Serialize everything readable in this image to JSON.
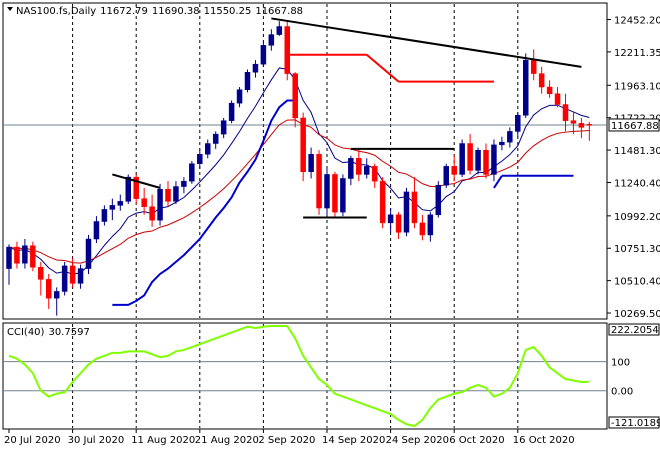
{
  "chart_data": [
    {
      "type": "candlestick",
      "symbol": "NAS100.fs",
      "timeframe": "Daily",
      "ohlc_header": [
        "11672.79",
        "11690.38",
        "11550.25",
        "11667.88"
      ],
      "current_price": 11667.88,
      "current_price_label": "11667.88",
      "y_tick_labels": [
        "12452.20",
        "12211.35",
        "11963.10",
        "11722.20",
        "11481.30",
        "11240.40",
        "10992.20",
        "10751.30",
        "10510.40",
        "10269.50"
      ],
      "y_tick_values": [
        12452.2,
        12211.35,
        11963.1,
        11722.2,
        11481.3,
        11240.4,
        10992.2,
        10751.3,
        10510.4,
        10269.5
      ],
      "x_tick_labels": [
        "20 Jul 2020",
        "30 Jul 2020",
        "11 Aug 2020",
        "21 Aug 2020",
        "2 Sep 2020",
        "14 Sep 2020",
        "24 Sep 2020",
        "6 Oct 2020",
        "16 Oct 2020"
      ],
      "x_tick_index": [
        0,
        8,
        16,
        24,
        32,
        40,
        48,
        56,
        64
      ],
      "ylim": [
        10240,
        12560
      ],
      "bull_color": "#00008b",
      "bear_color": "#ff0000",
      "candles": [
        [
          10600,
          10780,
          10480,
          10760
        ],
        [
          10760,
          10800,
          10600,
          10640
        ],
        [
          10640,
          10820,
          10600,
          10770
        ],
        [
          10770,
          10800,
          10580,
          10610
        ],
        [
          10610,
          10650,
          10400,
          10520
        ],
        [
          10520,
          10560,
          10300,
          10380
        ],
        [
          10380,
          10460,
          10250,
          10430
        ],
        [
          10430,
          10650,
          10400,
          10620
        ],
        [
          10620,
          10680,
          10460,
          10490
        ],
        [
          10490,
          10630,
          10450,
          10600
        ],
        [
          10600,
          10850,
          10560,
          10820
        ],
        [
          10820,
          10990,
          10790,
          10950
        ],
        [
          10950,
          11070,
          10920,
          11040
        ],
        [
          11040,
          11120,
          10960,
          11070
        ],
        [
          11070,
          11150,
          11030,
          11100
        ],
        [
          11100,
          11300,
          11080,
          11280
        ],
        [
          11280,
          11300,
          11080,
          11120
        ],
        [
          11120,
          11200,
          11000,
          11060
        ],
        [
          11060,
          11150,
          10910,
          10960
        ],
        [
          10960,
          11230,
          10920,
          11190
        ],
        [
          11190,
          11250,
          11060,
          11100
        ],
        [
          11100,
          11250,
          11080,
          11210
        ],
        [
          11210,
          11280,
          11160,
          11250
        ],
        [
          11250,
          11400,
          11230,
          11380
        ],
        [
          11380,
          11480,
          11340,
          11450
        ],
        [
          11450,
          11560,
          11420,
          11530
        ],
        [
          11530,
          11620,
          11490,
          11600
        ],
        [
          11600,
          11720,
          11570,
          11700
        ],
        [
          11700,
          11850,
          11680,
          11830
        ],
        [
          11830,
          11950,
          11800,
          11930
        ],
        [
          11930,
          12080,
          11910,
          12060
        ],
        [
          12060,
          12150,
          12020,
          12120
        ],
        [
          12120,
          12280,
          12100,
          12260
        ],
        [
          12260,
          12380,
          12220,
          12340
        ],
        [
          12340,
          12440,
          12330,
          12400
        ],
        [
          12400,
          12440,
          12000,
          12050
        ],
        [
          12050,
          12060,
          11650,
          11720
        ],
        [
          11720,
          11760,
          11250,
          11320
        ],
        [
          11320,
          11500,
          11270,
          11450
        ],
        [
          11450,
          11480,
          11000,
          11050
        ],
        [
          11050,
          11350,
          10990,
          11300
        ],
        [
          11300,
          11320,
          10980,
          11020
        ],
        [
          11020,
          11300,
          10990,
          11270
        ],
        [
          11270,
          11440,
          11220,
          11420
        ],
        [
          11420,
          11490,
          11250,
          11300
        ],
        [
          11300,
          11420,
          11270,
          11360
        ],
        [
          11360,
          11380,
          11200,
          11250
        ],
        [
          11250,
          11280,
          10900,
          10940
        ],
        [
          10940,
          11050,
          10870,
          11000
        ],
        [
          11000,
          11020,
          10820,
          10870
        ],
        [
          10870,
          11200,
          10840,
          11170
        ],
        [
          11170,
          11280,
          10900,
          10940
        ],
        [
          10940,
          11000,
          10810,
          10850
        ],
        [
          10850,
          11020,
          10800,
          11000
        ],
        [
          11000,
          11250,
          10980,
          11220
        ],
        [
          11220,
          11380,
          11200,
          11360
        ],
        [
          11360,
          11440,
          11250,
          11300
        ],
        [
          11300,
          11560,
          11280,
          11530
        ],
        [
          11530,
          11600,
          11300,
          11330
        ],
        [
          11330,
          11500,
          11300,
          11480
        ],
        [
          11480,
          11530,
          11270,
          11300
        ],
        [
          11300,
          11560,
          11250,
          11520
        ],
        [
          11520,
          11580,
          11480,
          11540
        ],
        [
          11540,
          11650,
          11500,
          11620
        ],
        [
          11620,
          11760,
          11580,
          11740
        ],
        [
          11740,
          12200,
          11720,
          12150
        ],
        [
          12150,
          12230,
          12000,
          12050
        ],
        [
          12050,
          12100,
          11900,
          11950
        ],
        [
          11950,
          12000,
          11870,
          11900
        ],
        [
          11900,
          11950,
          11800,
          11820
        ],
        [
          11820,
          11900,
          11620,
          11700
        ],
        [
          11700,
          11760,
          11600,
          11680
        ],
        [
          11680,
          11720,
          11570,
          11650
        ],
        [
          11672.79,
          11690.38,
          11550.25,
          11667.88
        ]
      ],
      "cci_panel": {
        "title": "CCI(40)",
        "title_value": "30.7597",
        "levels": [
          100,
          0.0
        ],
        "level_labels": [
          "100",
          "0.00"
        ],
        "max_label": "222.2054",
        "min_label": "-121.0189",
        "ylim": [
          -121.0189,
          222.2054
        ],
        "line_color": "#7fff00",
        "values": [
          120,
          110,
          90,
          60,
          0,
          -20,
          -10,
          -5,
          30,
          60,
          90,
          110,
          120,
          130,
          130,
          135,
          135,
          135,
          125,
          115,
          120,
          135,
          140,
          150,
          160,
          170,
          180,
          190,
          200,
          210,
          220,
          215,
          220,
          222,
          222,
          222,
          180,
          120,
          80,
          40,
          20,
          -10,
          -20,
          -30,
          -40,
          -50,
          -60,
          -70,
          -80,
          -100,
          -115,
          -121,
          -100,
          -60,
          -30,
          -20,
          -10,
          -5,
          10,
          20,
          10,
          -20,
          -10,
          10,
          60,
          140,
          150,
          120,
          80,
          60,
          40,
          35,
          30,
          30.7597
        ],
        "note": "values approximate, one per candle"
      },
      "indicators": {
        "ma_fast_color": "#00008b",
        "ma_slow_color": "#cc0000",
        "band_lower_color": "#0000cd",
        "band_upper_color": "#ff0000",
        "trendline_color": "#000000"
      },
      "trendlines": [
        {
          "from": [
            33,
            12460
          ],
          "to": [
            72,
            12100
          ]
        },
        {
          "from": [
            13,
            11300
          ],
          "to": [
            19,
            11200
          ]
        },
        {
          "from": [
            37,
            10980
          ],
          "to": [
            45,
            10980
          ]
        },
        {
          "from": [
            43,
            11490
          ],
          "to": [
            56,
            11490
          ]
        }
      ],
      "support_resistance_segments": [
        {
          "color": "#ff0000",
          "from": [
            35,
            12190
          ],
          "to": [
            45,
            12190
          ]
        },
        {
          "color": "#ff0000",
          "from": [
            45,
            12190
          ],
          "to": [
            49,
            11990
          ]
        },
        {
          "color": "#ff0000",
          "from": [
            49,
            11990
          ],
          "to": [
            61,
            11990
          ]
        },
        {
          "color": "#0000cd",
          "from": [
            61,
            11200
          ],
          "to": [
            62,
            11290
          ]
        },
        {
          "color": "#0000cd",
          "from": [
            62,
            11290
          ],
          "to": [
            71,
            11290
          ]
        }
      ],
      "lower_band_series": [
        null,
        null,
        null,
        null,
        null,
        null,
        null,
        null,
        null,
        null,
        null,
        null,
        null,
        10330,
        10330,
        10330,
        10360,
        10400,
        10500,
        10560,
        10600,
        10650,
        10700,
        10760,
        10820,
        10900,
        10980,
        11050,
        11130,
        11240,
        11320,
        11410,
        11550,
        11700,
        11800,
        11850,
        11850
      ],
      "vertical_grid_index": [
        8,
        16,
        24,
        32,
        40,
        48,
        56,
        64
      ]
    }
  ]
}
